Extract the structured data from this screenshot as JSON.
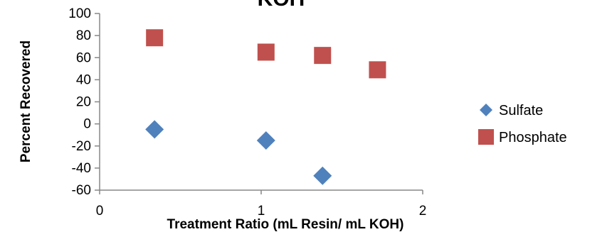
{
  "chart_data": {
    "type": "scatter",
    "title": "KOH",
    "xlabel": "Treatment Ratio (mL Resin/ mL KOH)",
    "ylabel": "Percent Recovered",
    "xlim": [
      0,
      2
    ],
    "ylim": [
      -60,
      100
    ],
    "x_ticks": [
      "0",
      "1",
      "2"
    ],
    "y_ticks": [
      "100",
      "80",
      "60",
      "40",
      "20",
      "0",
      "-20",
      "-40",
      "-60"
    ],
    "grid": false,
    "legend_position": "right",
    "series": [
      {
        "name": "Sulfate",
        "marker": "diamond",
        "color": "#4f81bd",
        "points": [
          [
            0.34,
            -5
          ],
          [
            1.03,
            -15
          ],
          [
            1.38,
            -47
          ]
        ]
      },
      {
        "name": "Phosphate",
        "marker": "square",
        "color": "#c0504d",
        "points": [
          [
            0.34,
            78
          ],
          [
            1.03,
            65
          ],
          [
            1.38,
            62
          ],
          [
            1.72,
            49
          ]
        ]
      }
    ]
  }
}
